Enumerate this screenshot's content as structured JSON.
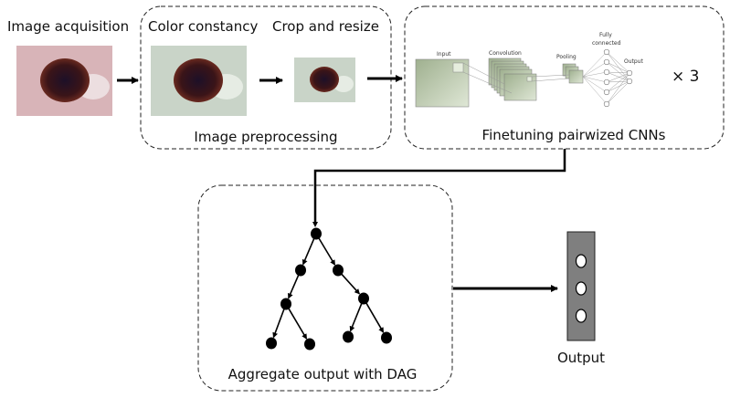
{
  "stages": {
    "acquisition": {
      "label": "Image acquisition"
    },
    "preprocessing": {
      "title": "Image preprocessing",
      "steps": [
        "Color constancy",
        "Crop and resize"
      ]
    },
    "cnn": {
      "title": "Finetuning pairwized CNNs",
      "layers": [
        "Input",
        "Convolution",
        "Pooling",
        "Fully connected",
        "Output"
      ],
      "multiplier": "× 3"
    },
    "dag": {
      "title": "Aggregate output with DAG"
    },
    "output": {
      "label": "Output"
    }
  },
  "colors": {
    "skin_original": "#d8b4b8",
    "skin_normalized": "#c9d4c8",
    "lesion": "#2a1420",
    "cnn_layer": "#b8c8a8",
    "output_box": "#7f7f7f"
  }
}
